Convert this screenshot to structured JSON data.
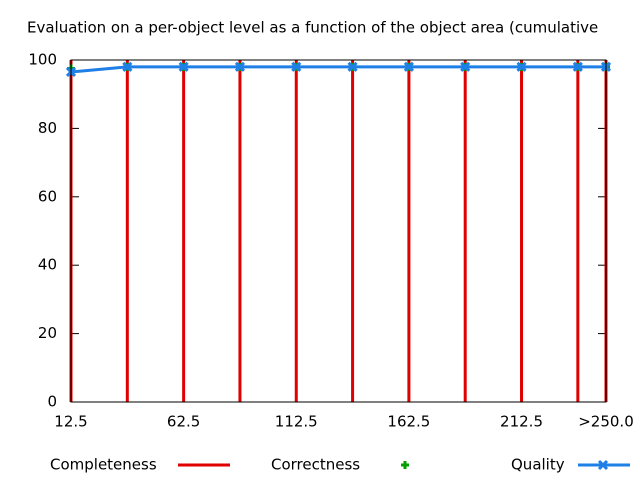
{
  "chart_data": {
    "type": "line",
    "title": "Evaluation on a per-object level as a function of the object area (cumulative",
    "x": [
      12.5,
      37.5,
      62.5,
      87.5,
      112.5,
      137.5,
      162.5,
      187.5,
      212.5,
      237.5,
      250
    ],
    "xlim": [
      12.5,
      250
    ],
    "xticks": [
      12.5,
      62.5,
      112.5,
      162.5,
      212.5,
      {
        "value": 250,
        "label": ">250.0"
      }
    ],
    "ylim": [
      0,
      100
    ],
    "yticks": [
      0,
      20,
      40,
      60,
      80,
      100
    ],
    "series": [
      {
        "name": "Completeness",
        "color": "#e00000",
        "style": "impulses",
        "values": [
          100,
          100,
          100,
          100,
          100,
          100,
          100,
          100,
          100,
          100,
          100
        ]
      },
      {
        "name": "Correctness",
        "color": "#00a000",
        "style": "points",
        "marker": "plus",
        "values": [
          97.5,
          98,
          98,
          98,
          98,
          98,
          98,
          98,
          98,
          98,
          98
        ]
      },
      {
        "name": "Quality",
        "color": "#1e7fe6",
        "style": "linespoints",
        "marker": "x",
        "values": [
          96.5,
          98,
          98,
          98,
          98,
          98,
          98,
          98,
          98,
          98,
          98
        ]
      }
    ]
  }
}
